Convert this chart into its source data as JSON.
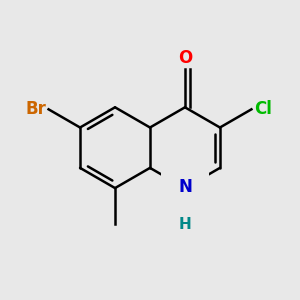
{
  "bg_color": "#e8e8e8",
  "bond_color": "#000000",
  "bond_width": 1.8,
  "atom_colors": {
    "O": "#ff0000",
    "Cl": "#00bb00",
    "Br": "#cc6600",
    "N": "#0000cc",
    "H": "#008888",
    "C": "#000000"
  },
  "font_size_atom": 12,
  "font_size_small": 10,
  "scale": 35,
  "ox": 150,
  "oy": 148
}
